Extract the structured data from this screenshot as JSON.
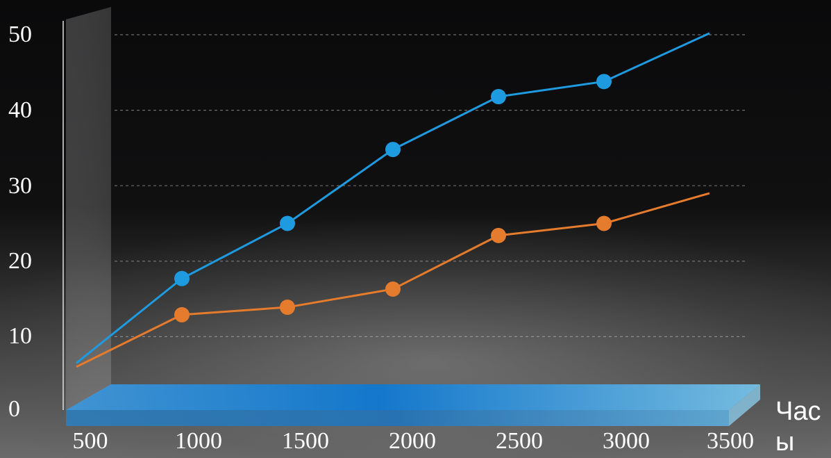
{
  "chart_data": {
    "type": "line",
    "title": "",
    "xlabel": "Часы",
    "ylabel": "",
    "x": [
      500,
      1000,
      1500,
      2000,
      2500,
      3000,
      3500
    ],
    "y_ticks": [
      "0",
      "10",
      "20",
      "30",
      "40",
      "50"
    ],
    "x_ticks": [
      "500",
      "1000",
      "1500",
      "2000",
      "2500",
      "3000",
      "3500"
    ],
    "ylim": [
      0,
      50
    ],
    "grid": true,
    "series": [
      {
        "color": "#1e9be0",
        "values": [
          6.5,
          17.7,
          25.0,
          34.8,
          41.8,
          43.8,
          50.2
        ],
        "markers": [
          false,
          true,
          true,
          true,
          true,
          true,
          false
        ]
      },
      {
        "color": "#e57b2c",
        "values": [
          6.0,
          12.9,
          13.9,
          16.3,
          23.4,
          25.0,
          29.0
        ],
        "markers": [
          false,
          true,
          true,
          true,
          true,
          true,
          false
        ]
      }
    ]
  }
}
